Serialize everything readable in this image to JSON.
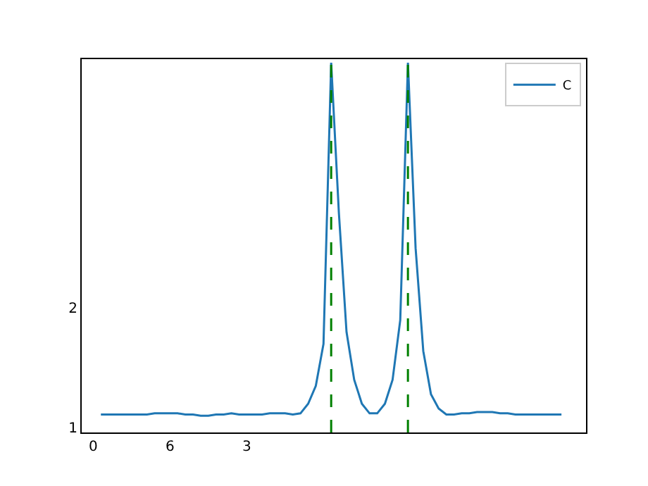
{
  "chart_data": {
    "type": "line",
    "categories": [
      "0",
      null,
      null,
      null,
      null,
      null,
      null,
      null,
      null,
      null,
      "6",
      null,
      null,
      null,
      null,
      null,
      null,
      null,
      null,
      null,
      "3",
      null,
      null,
      null,
      null,
      null,
      null,
      null,
      null,
      null,
      null,
      null,
      null,
      null,
      null,
      null,
      null,
      null,
      null,
      null,
      null,
      null,
      null,
      null,
      null,
      null,
      null,
      null,
      null,
      null,
      null,
      null,
      null,
      null,
      null,
      null,
      null,
      null,
      null,
      null,
      null,
      null
    ],
    "series": [
      {
        "name": "C",
        "color": "#1f77b4",
        "values": [
          null,
          1.11,
          1.11,
          1.11,
          1.11,
          1.11,
          1.11,
          1.11,
          1.12,
          1.12,
          1.12,
          1.12,
          1.11,
          1.11,
          1.1,
          1.1,
          1.11,
          1.11,
          1.12,
          1.11,
          1.11,
          1.11,
          1.11,
          1.12,
          1.12,
          1.12,
          1.11,
          1.12,
          1.2,
          1.35,
          1.7,
          4.05,
          2.8,
          1.8,
          1.4,
          1.2,
          1.12,
          1.12,
          1.2,
          1.4,
          1.9,
          4.05,
          2.5,
          1.64,
          1.28,
          1.16,
          1.11,
          1.11,
          1.12,
          1.12,
          1.13,
          1.13,
          1.13,
          1.12,
          1.12,
          1.11,
          1.11,
          1.11,
          1.11,
          1.11,
          1.11,
          1.11
        ]
      }
    ],
    "ylim": [
      0.96,
      4.08
    ],
    "yticks": [
      1,
      2
    ],
    "legend": "top right",
    "grid": false,
    "marker": "none",
    "line_style": "solid"
  }
}
